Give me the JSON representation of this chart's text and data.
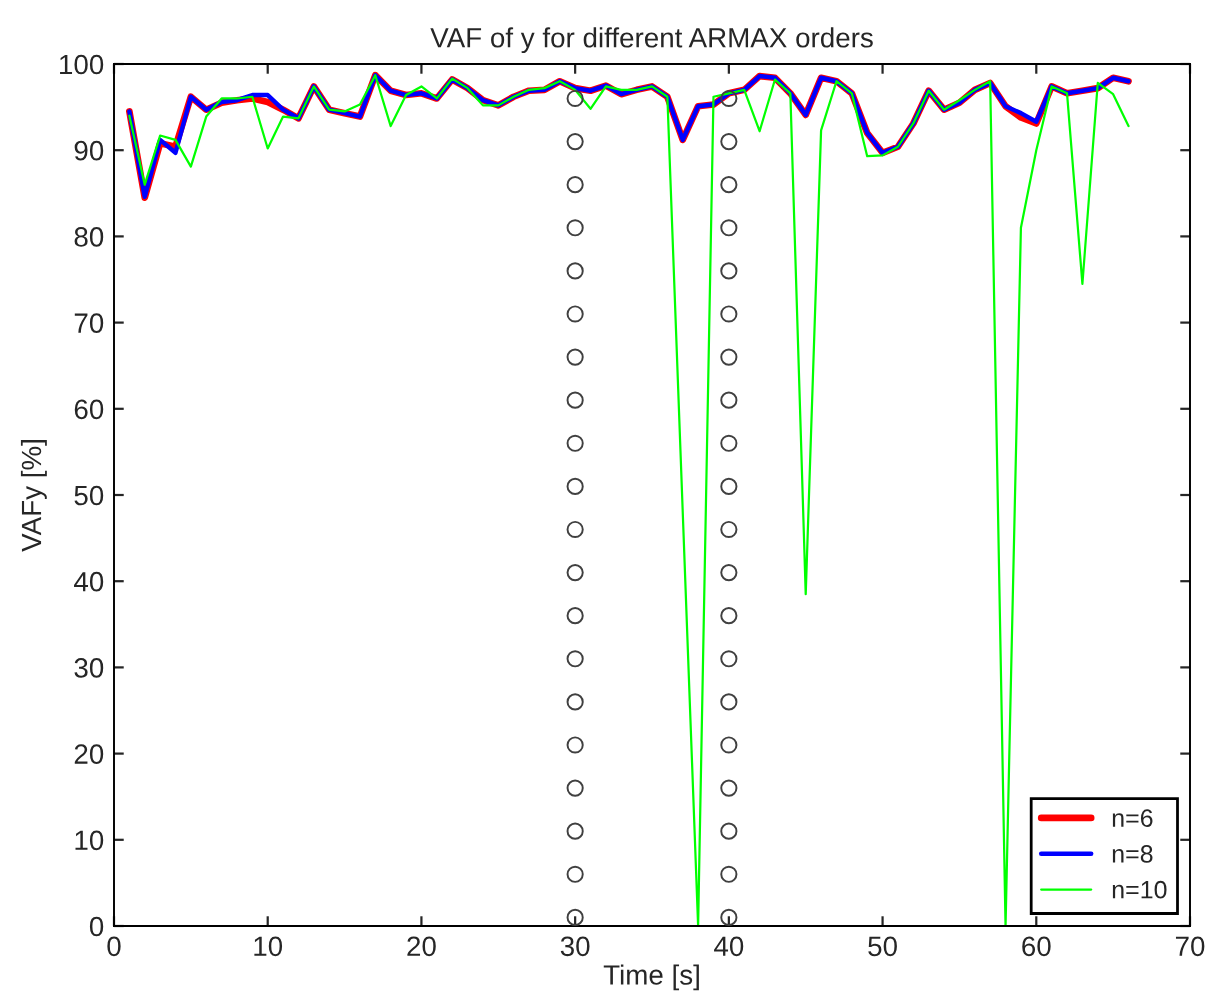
{
  "chart_data": {
    "type": "line",
    "title": "VAF of y for different ARMAX orders",
    "xlabel": "Time [s]",
    "ylabel": "VAFy [%]",
    "xlim": [
      0,
      70
    ],
    "ylim": [
      0,
      100
    ],
    "xticks": [
      0,
      10,
      20,
      30,
      40,
      50,
      60,
      70
    ],
    "yticks": [
      0,
      10,
      20,
      30,
      40,
      50,
      60,
      70,
      80,
      90,
      100
    ],
    "grid": false,
    "legend": "bottom right",
    "marker": "none",
    "line_style": "solid",
    "series": [
      {
        "name": "n=6",
        "color": "#ff0000",
        "x": [
          1,
          2,
          3,
          4,
          5,
          6,
          7,
          8,
          9,
          10,
          11,
          12,
          13,
          14,
          15,
          16,
          17,
          18,
          19,
          20,
          21,
          22,
          23,
          24,
          25,
          26,
          27,
          28,
          29,
          30,
          31,
          32,
          33,
          34,
          35,
          36,
          37,
          38,
          39,
          40,
          41,
          42,
          43,
          44,
          45,
          46,
          47,
          48,
          49,
          50,
          51,
          52,
          53,
          54,
          55,
          56,
          57,
          58,
          59,
          60,
          61,
          62,
          63,
          64,
          65,
          66
        ],
        "values": [
          94.5,
          84.5,
          90.8,
          90.4,
          96.2,
          94.7,
          95.5,
          95.8,
          96.0,
          95.6,
          94.7,
          93.7,
          97.4,
          94.7,
          94.3,
          93.9,
          98.7,
          96.9,
          96.4,
          96.6,
          96.0,
          98.2,
          97.2,
          95.8,
          95.2,
          96.2,
          96.9,
          97.0,
          98.0,
          97.2,
          96.9,
          97.5,
          96.5,
          97.0,
          97.4,
          96.2,
          91.2,
          95.1,
          95.3,
          96.6,
          97.0,
          98.6,
          98.4,
          96.6,
          94.1,
          98.4,
          98.0,
          96.6,
          92.0,
          89.7,
          90.4,
          93.1,
          96.9,
          94.7,
          95.5,
          97.0,
          97.8,
          95.1,
          93.8,
          93.1,
          97.4,
          96.6,
          96.9,
          97.2,
          98.4,
          98.0
        ]
      },
      {
        "name": "n=8",
        "color": "#0000ff",
        "x": [
          1,
          2,
          3,
          4,
          5,
          6,
          7,
          8,
          9,
          10,
          11,
          12,
          13,
          14,
          15,
          16,
          17,
          18,
          19,
          20,
          21,
          22,
          23,
          24,
          25,
          26,
          27,
          28,
          29,
          30,
          31,
          32,
          33,
          34,
          35,
          36,
          37,
          38,
          39,
          40,
          41,
          42,
          43,
          44,
          45,
          46,
          47,
          48,
          49,
          50,
          51,
          52,
          53,
          54,
          55,
          56,
          57,
          58,
          59,
          60,
          61,
          62,
          63,
          64,
          65,
          66
        ],
        "values": [
          94.5,
          84.6,
          91.2,
          89.7,
          96.2,
          94.7,
          95.6,
          95.8,
          96.4,
          96.4,
          94.7,
          93.7,
          97.4,
          94.7,
          94.3,
          93.9,
          98.7,
          96.9,
          96.4,
          96.6,
          96.0,
          98.2,
          97.2,
          95.8,
          95.2,
          96.2,
          96.9,
          97.0,
          98.0,
          97.2,
          96.9,
          97.5,
          96.5,
          97.0,
          97.4,
          96.2,
          91.2,
          95.1,
          95.3,
          96.6,
          97.0,
          98.6,
          98.4,
          96.6,
          94.1,
          98.4,
          98.0,
          96.6,
          92.0,
          89.7,
          90.4,
          93.1,
          96.9,
          94.7,
          95.5,
          97.0,
          97.8,
          95.1,
          94.3,
          93.3,
          97.4,
          96.6,
          96.9,
          97.2,
          98.4,
          98.0
        ]
      },
      {
        "name": "n=10",
        "color": "#00ff00",
        "x": [
          1,
          2,
          3,
          4,
          5,
          6,
          7,
          8,
          9,
          10,
          11,
          12,
          13,
          14,
          15,
          16,
          17,
          18,
          19,
          20,
          21,
          22,
          23,
          24,
          25,
          26,
          27,
          28,
          29,
          30,
          31,
          32,
          33,
          34,
          35,
          36,
          37,
          38,
          39,
          40,
          41,
          42,
          43,
          44,
          45,
          46,
          47,
          48,
          49,
          50,
          51,
          52,
          53,
          54,
          55,
          56,
          57,
          58,
          59,
          60,
          61,
          62,
          63,
          64,
          65,
          66
        ],
        "values": [
          94.0,
          86.0,
          91.7,
          91.2,
          88.1,
          93.9,
          96.0,
          96.0,
          96.2,
          90.2,
          93.9,
          93.7,
          97.4,
          94.7,
          94.5,
          95.3,
          98.7,
          92.8,
          96.4,
          97.4,
          96.0,
          98.3,
          97.2,
          95.2,
          95.2,
          96.2,
          97.0,
          97.2,
          98.0,
          97.0,
          94.8,
          97.4,
          97.0,
          97.0,
          97.4,
          96.2,
          48.0,
          0.0,
          96.2,
          96.6,
          97.0,
          92.2,
          98.2,
          96.6,
          38.5,
          92.3,
          98.0,
          96.6,
          89.3,
          89.4,
          90.4,
          93.1,
          96.9,
          94.7,
          95.8,
          97.0,
          98.0,
          0.0,
          81.0,
          90.0,
          97.4,
          96.6,
          74.5,
          97.8,
          96.5,
          92.8
        ]
      },
      {
        "type": "scatter",
        "marker": "circle",
        "color": "#404040",
        "x": [
          30,
          30,
          30,
          30,
          30,
          30,
          30,
          30,
          30,
          30,
          30,
          30,
          30,
          30,
          30,
          30,
          30,
          30,
          30,
          30
        ],
        "values": [
          1,
          6,
          11,
          16,
          21,
          26,
          31,
          36,
          41,
          46,
          51,
          56,
          61,
          66,
          71,
          76,
          81,
          86,
          91,
          96
        ]
      },
      {
        "type": "scatter",
        "marker": "circle",
        "color": "#404040",
        "x": [
          40,
          40,
          40,
          40,
          40,
          40,
          40,
          40,
          40,
          40,
          40,
          40,
          40,
          40,
          40,
          40,
          40,
          40,
          40,
          40
        ],
        "values": [
          1,
          6,
          11,
          16,
          21,
          26,
          31,
          36,
          41,
          46,
          51,
          56,
          61,
          66,
          71,
          76,
          81,
          86,
          91,
          96
        ]
      }
    ]
  }
}
